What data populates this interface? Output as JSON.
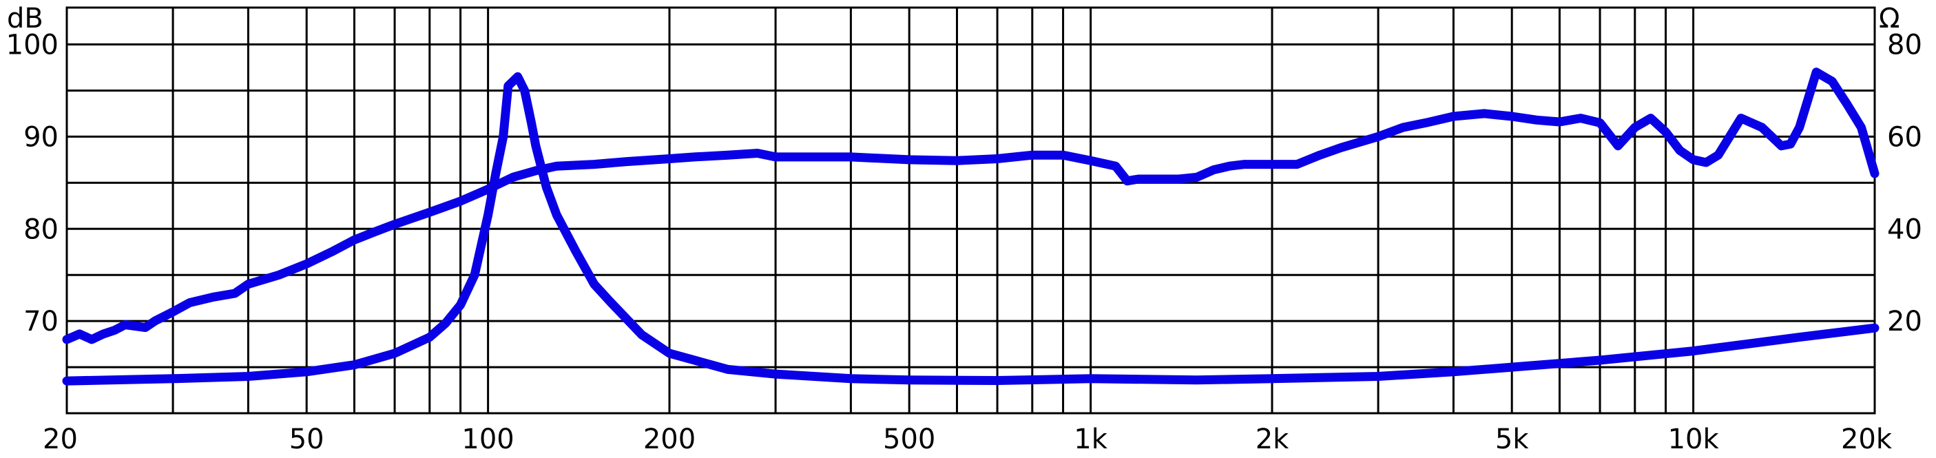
{
  "chart_data": {
    "type": "line",
    "title": "",
    "xlabel": "",
    "ylabel": "dB",
    "y2label": "Ω",
    "xscale": "log",
    "xlim": [
      20,
      20000
    ],
    "ylim": [
      60,
      104
    ],
    "y2lim": [
      0,
      88
    ],
    "grid": true,
    "x_ticks": [
      {
        "value": 20,
        "label": "20"
      },
      {
        "value": 50,
        "label": "50"
      },
      {
        "value": 100,
        "label": "100"
      },
      {
        "value": 200,
        "label": "200"
      },
      {
        "value": 500,
        "label": "500"
      },
      {
        "value": 1000,
        "label": "1k"
      },
      {
        "value": 2000,
        "label": "2k"
      },
      {
        "value": 5000,
        "label": "5k"
      },
      {
        "value": 10000,
        "label": "10k"
      },
      {
        "value": 20000,
        "label": "20k"
      }
    ],
    "y_ticks": [
      {
        "value": 70,
        "label": "70"
      },
      {
        "value": 80,
        "label": "80"
      },
      {
        "value": 90,
        "label": "90"
      },
      {
        "value": 100,
        "label": "100"
      }
    ],
    "y2_ticks": [
      {
        "value": 20,
        "label": "20"
      },
      {
        "value": 40,
        "label": "40"
      },
      {
        "value": 60,
        "label": "60"
      },
      {
        "value": 80,
        "label": "80"
      }
    ],
    "series": [
      {
        "axis": "left",
        "color": "#0a00e6",
        "x": [
          20,
          21,
          22,
          23,
          24,
          25,
          27,
          28,
          30,
          32,
          35,
          38,
          40,
          45,
          50,
          55,
          60,
          65,
          70,
          80,
          90,
          100,
          110,
          120,
          130,
          150,
          170,
          200,
          220,
          250,
          280,
          300,
          350,
          400,
          500,
          600,
          700,
          800,
          900,
          1000,
          1100,
          1150,
          1200,
          1300,
          1400,
          1500,
          1600,
          1700,
          1800,
          2000,
          2200,
          2400,
          2600,
          3000,
          3300,
          3600,
          4000,
          4500,
          5000,
          5500,
          6000,
          6500,
          7000,
          7500,
          8000,
          8500,
          9000,
          9500,
          10000,
          10500,
          11000,
          12000,
          13000,
          14000,
          14500,
          15000,
          16000,
          17000,
          18000,
          19000,
          20000
        ],
        "values": [
          68.0,
          68.6,
          68.0,
          68.6,
          69.0,
          69.6,
          69.3,
          70.0,
          71.0,
          72.0,
          72.6,
          73.0,
          74.0,
          75.0,
          76.2,
          77.5,
          78.8,
          79.7,
          80.5,
          81.8,
          83.0,
          84.3,
          85.6,
          86.3,
          86.8,
          87.0,
          87.3,
          87.6,
          87.8,
          88.0,
          88.2,
          87.8,
          87.8,
          87.8,
          87.5,
          87.4,
          87.6,
          88.0,
          88.0,
          87.4,
          86.8,
          85.2,
          85.4,
          85.4,
          85.4,
          85.6,
          86.4,
          86.8,
          87.0,
          87.0,
          87.0,
          88.0,
          88.8,
          90.0,
          91.0,
          91.5,
          92.2,
          92.5,
          92.2,
          91.8,
          91.6,
          92.0,
          91.5,
          89.0,
          91.0,
          92.0,
          90.5,
          88.5,
          87.5,
          87.2,
          88.0,
          92.0,
          91.0,
          89.0,
          89.2,
          91.0,
          97.0,
          96.0,
          93.5,
          91.0,
          86.0
        ]
      },
      {
        "axis": "right",
        "color": "#0a00e6",
        "x": [
          20,
          30,
          40,
          50,
          60,
          70,
          80,
          85,
          90,
          95,
          100,
          103,
          106,
          108,
          112,
          115,
          118,
          120,
          125,
          130,
          140,
          150,
          160,
          180,
          200,
          250,
          300,
          400,
          500,
          700,
          1000,
          1500,
          2000,
          3000,
          4000,
          5000,
          7000,
          10000,
          15000,
          20000
        ],
        "values": [
          7.0,
          7.5,
          8.0,
          9.0,
          10.5,
          13.0,
          16.5,
          19.5,
          23.5,
          30.0,
          43.0,
          52.0,
          60.0,
          71.0,
          73.0,
          70.0,
          63.0,
          58.0,
          49.0,
          43.0,
          35.0,
          28.0,
          24.0,
          17.0,
          13.0,
          9.5,
          8.5,
          7.5,
          7.2,
          7.1,
          7.5,
          7.2,
          7.5,
          8.0,
          9.0,
          10.0,
          11.5,
          13.5,
          16.5,
          18.5
        ]
      }
    ]
  }
}
